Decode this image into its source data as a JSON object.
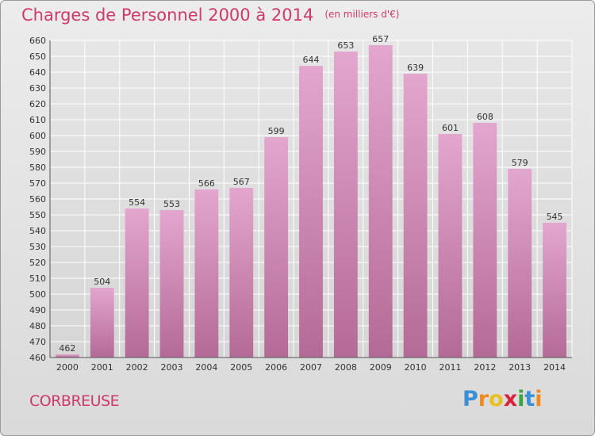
{
  "header": {
    "title": "Charges de Personnel 2000 à 2014",
    "unit": "(en milliers d'€)"
  },
  "footer": {
    "place": "CORBREUSE",
    "logo_letters": [
      "P",
      "r",
      "o",
      "x",
      "i",
      "t",
      "i"
    ],
    "logo_colors": [
      "#3b8fd6",
      "#f08a1c",
      "#e8c020",
      "#d8223a",
      "#3aa640",
      "#3b8fd6",
      "#f08a1c"
    ]
  },
  "chart_data": {
    "type": "bar",
    "categories": [
      "2000",
      "2001",
      "2002",
      "2003",
      "2004",
      "2005",
      "2006",
      "2007",
      "2008",
      "2009",
      "2010",
      "2011",
      "2012",
      "2013",
      "2014"
    ],
    "values": [
      462,
      504,
      554,
      553,
      566,
      567,
      599,
      644,
      653,
      657,
      639,
      601,
      608,
      579,
      545
    ],
    "data_labels": [
      "462",
      "504",
      "554",
      "553",
      "566",
      "567",
      "599",
      "644",
      "653",
      "657",
      "639",
      "601",
      "608",
      "579",
      "545"
    ],
    "title": "Charges de Personnel 2000 à 2014",
    "xlabel": "",
    "ylabel": "",
    "ylim": [
      460,
      660
    ],
    "yticks": [
      "460",
      "470",
      "480",
      "490",
      "500",
      "510",
      "520",
      "530",
      "540",
      "550",
      "560",
      "570",
      "580",
      "590",
      "600",
      "610",
      "620",
      "630",
      "640",
      "650",
      "660"
    ],
    "grid": true,
    "bar_color": "#d98ab8"
  }
}
